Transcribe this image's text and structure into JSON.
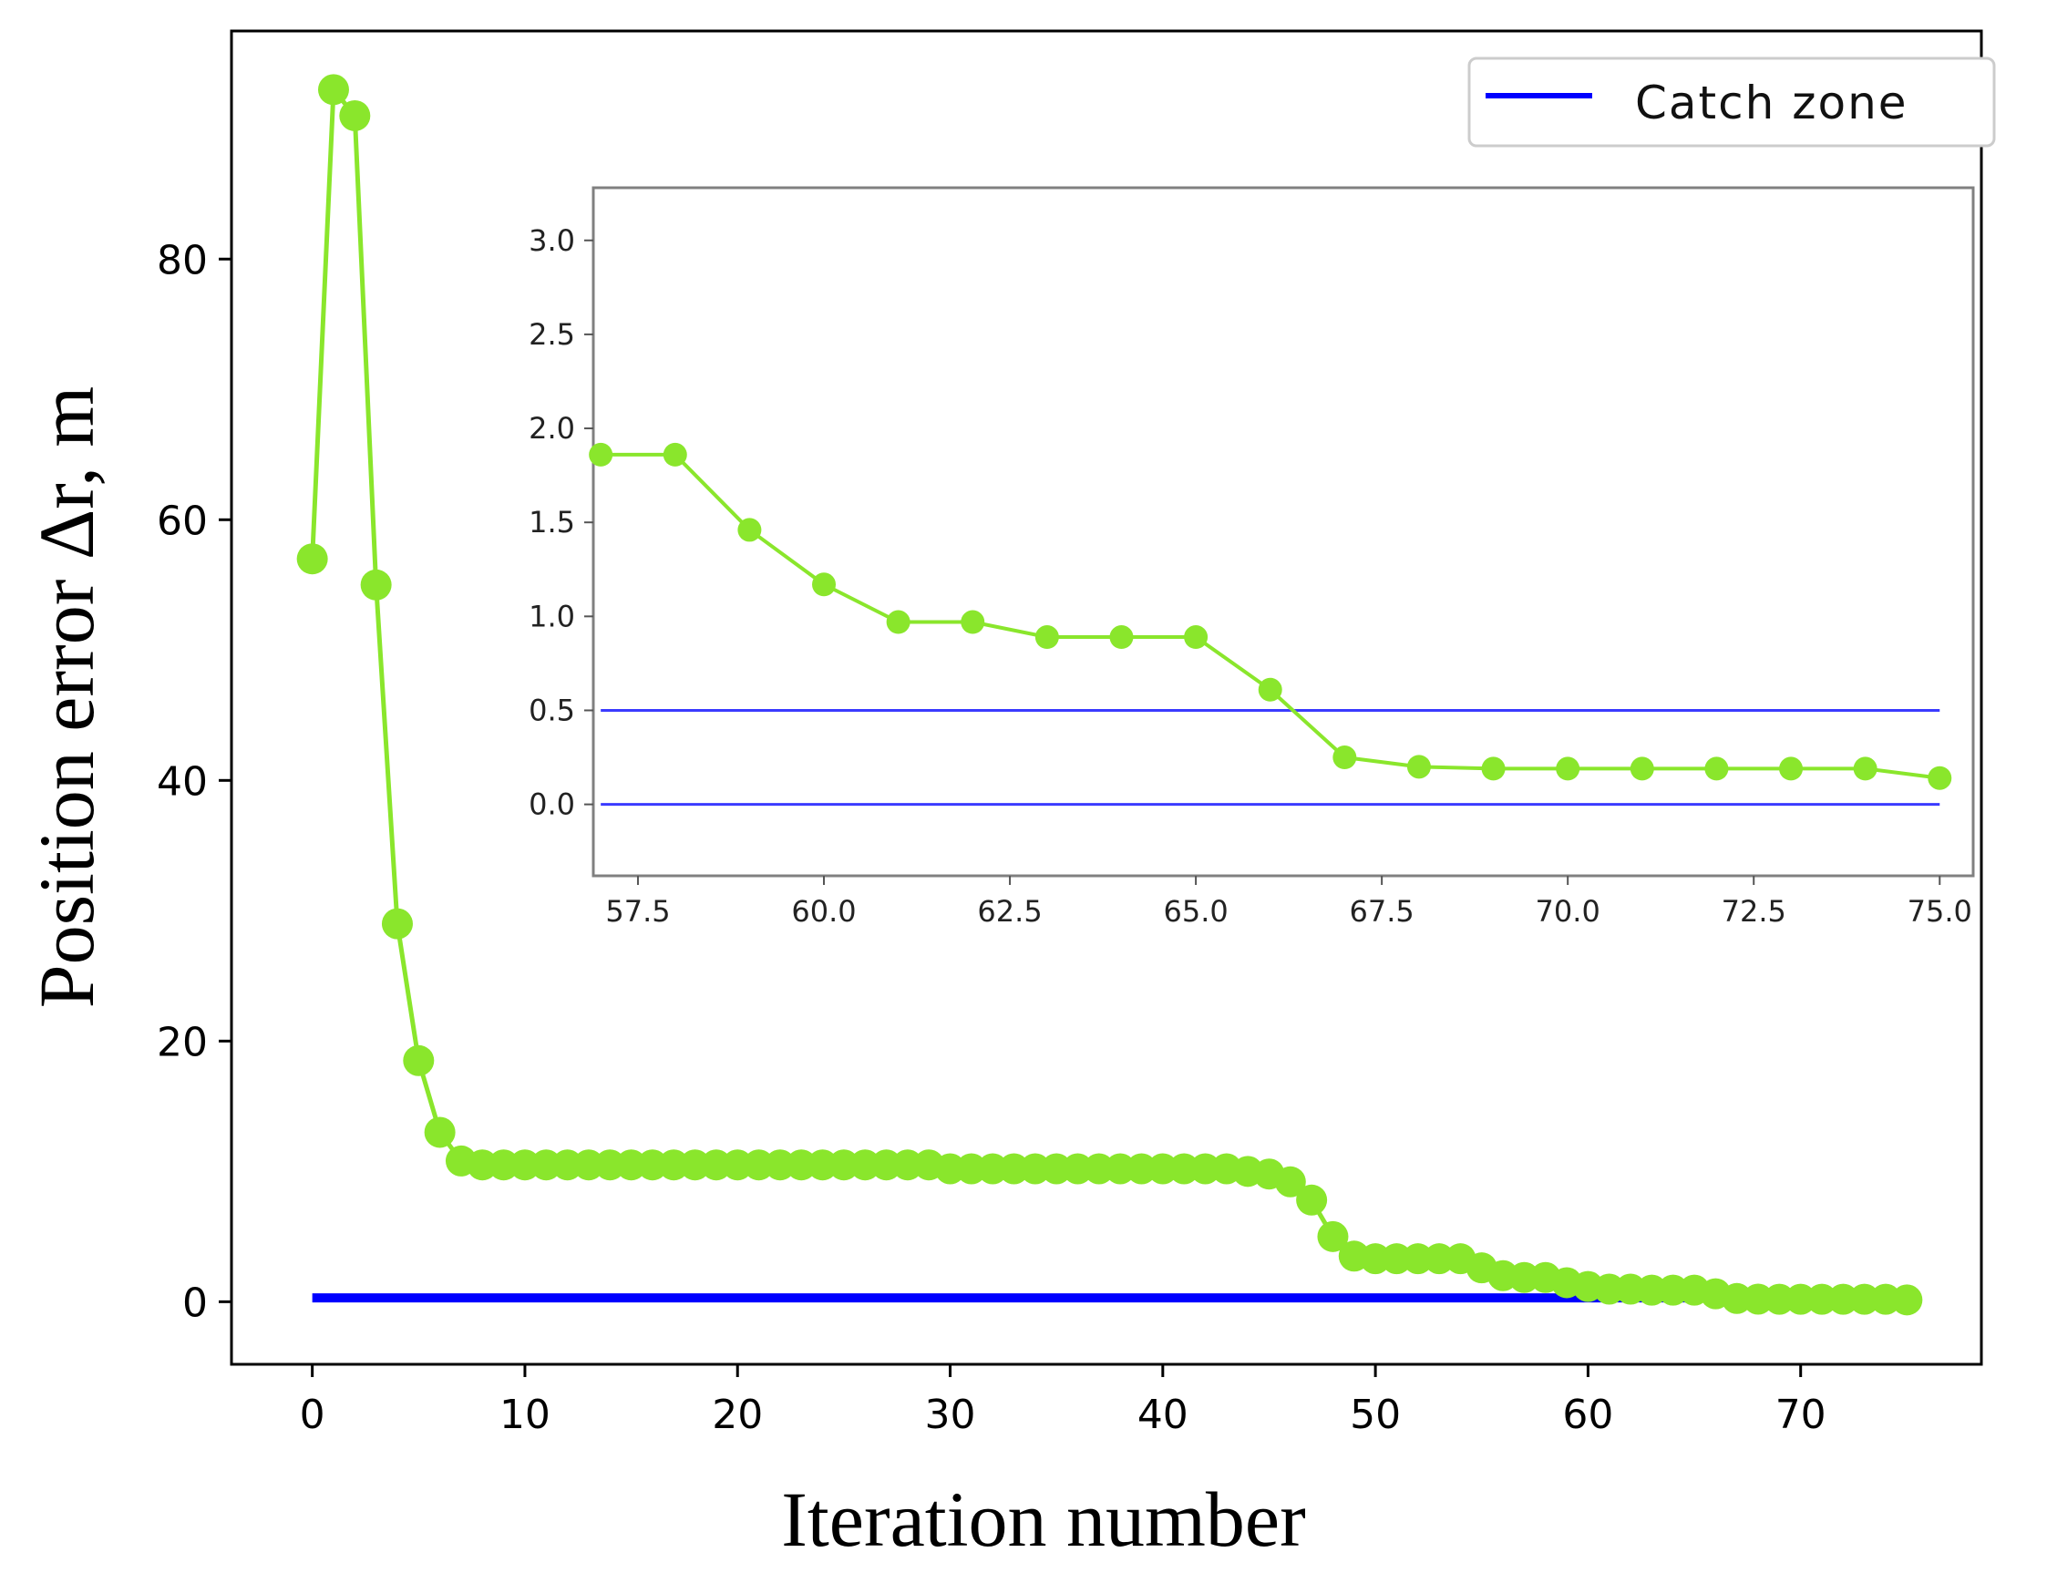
{
  "chart_data": [
    {
      "id": "main",
      "type": "line",
      "xlabel": "Iteration number",
      "ylabel": "Position error Δr, m",
      "xlim": [
        -3.8,
        78.5
      ],
      "ylim": [
        -4.8,
        97.5
      ],
      "xticks": [
        0,
        10,
        20,
        30,
        40,
        50,
        60,
        70
      ],
      "xtick_labels": [
        "0",
        "10",
        "20",
        "30",
        "40",
        "50",
        "60",
        "70"
      ],
      "yticks": [
        0,
        20,
        40,
        60,
        80
      ],
      "ytick_labels": [
        "0",
        "20",
        "40",
        "60",
        "80"
      ],
      "grid": false,
      "legend": {
        "position": "top-right",
        "entries": [
          "Catch zone"
        ]
      },
      "series": [
        {
          "name": "Position error",
          "color": "#8ae62c",
          "marker": "circle",
          "x": [
            0,
            1,
            2,
            3,
            4,
            5,
            6,
            7,
            8,
            9,
            10,
            11,
            12,
            13,
            14,
            15,
            16,
            17,
            18,
            19,
            20,
            21,
            22,
            23,
            24,
            25,
            26,
            27,
            28,
            29,
            30,
            31,
            32,
            33,
            34,
            35,
            36,
            37,
            38,
            39,
            40,
            41,
            42,
            43,
            44,
            45,
            46,
            47,
            48,
            49,
            50,
            51,
            52,
            53,
            54,
            55,
            56,
            57,
            58,
            59,
            60,
            61,
            62,
            63,
            64,
            65,
            66,
            67,
            68,
            69,
            70,
            71,
            72,
            73,
            74,
            75
          ],
          "values": [
            57.0,
            93.0,
            91.0,
            55.0,
            29.0,
            18.5,
            13.0,
            10.8,
            10.5,
            10.5,
            10.5,
            10.5,
            10.5,
            10.5,
            10.5,
            10.5,
            10.5,
            10.5,
            10.5,
            10.5,
            10.5,
            10.5,
            10.5,
            10.5,
            10.5,
            10.5,
            10.5,
            10.5,
            10.5,
            10.5,
            10.2,
            10.2,
            10.2,
            10.2,
            10.2,
            10.2,
            10.2,
            10.2,
            10.2,
            10.2,
            10.2,
            10.2,
            10.2,
            10.2,
            10.0,
            9.8,
            9.2,
            7.8,
            5.0,
            3.5,
            3.3,
            3.3,
            3.3,
            3.3,
            3.3,
            2.6,
            2.0,
            1.86,
            1.86,
            1.46,
            1.17,
            0.97,
            0.97,
            0.89,
            0.89,
            0.89,
            0.61,
            0.25,
            0.2,
            0.19,
            0.19,
            0.19,
            0.19,
            0.19,
            0.19,
            0.14
          ]
        },
        {
          "name": "Catch zone",
          "color": "#0000ff",
          "x": [
            0,
            75
          ],
          "values": [
            0.3,
            0.3
          ]
        }
      ]
    },
    {
      "id": "inset",
      "type": "line",
      "xlim": [
        56.9,
        75.45
      ],
      "ylim": [
        -0.38,
        3.28
      ],
      "xticks": [
        57.5,
        60.0,
        62.5,
        65.0,
        67.5,
        70.0,
        72.5,
        75.0
      ],
      "xtick_labels": [
        "57.5",
        "60.0",
        "62.5",
        "65.0",
        "67.5",
        "70.0",
        "72.5",
        "75.0"
      ],
      "yticks": [
        0.0,
        0.5,
        1.0,
        1.5,
        2.0,
        2.5,
        3.0
      ],
      "ytick_labels": [
        "0.0",
        "0.5",
        "1.0",
        "1.5",
        "2.0",
        "2.5",
        "3.0"
      ],
      "grid": false,
      "series": [
        {
          "name": "Position error",
          "color": "#8ae62c",
          "marker": "circle",
          "x": [
            57,
            58,
            59,
            60,
            61,
            62,
            63,
            64,
            65,
            66,
            67,
            68,
            69,
            70,
            71,
            72,
            73,
            74,
            75
          ],
          "values": [
            1.86,
            1.86,
            1.46,
            1.17,
            0.97,
            0.97,
            0.89,
            0.89,
            0.89,
            0.61,
            0.25,
            0.2,
            0.19,
            0.19,
            0.19,
            0.19,
            0.19,
            0.19,
            0.14
          ]
        },
        {
          "name": "Catch zone upper",
          "color": "#3a3aff",
          "x": [
            57,
            75
          ],
          "values": [
            0.5,
            0.5
          ]
        },
        {
          "name": "Catch zone lower",
          "color": "#3a3aff",
          "x": [
            57,
            75
          ],
          "values": [
            0.0,
            0.0
          ]
        }
      ]
    }
  ]
}
